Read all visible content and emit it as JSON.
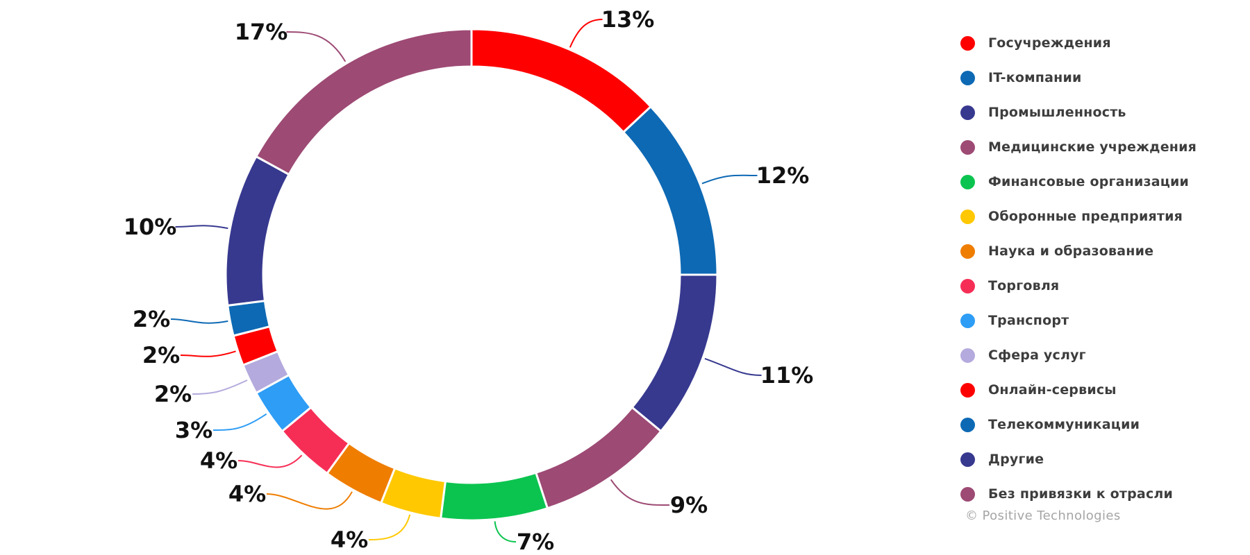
{
  "chart_data": {
    "type": "pie",
    "subtype": "donut",
    "title": "",
    "legend_position": "right",
    "direction": "clockwise",
    "start_angle_deg": 0,
    "total": 100,
    "categories": [
      "Госучреждения",
      "IT-компании",
      "Промышленность",
      "Медицинские учреждения",
      "Финансовые организации",
      "Оборонные предприятия",
      "Наука и образование",
      "Торговля",
      "Транспорт",
      "Сфера услуг",
      "Онлайн-сервисы",
      "Телекоммуникации",
      "Другие",
      "Без привязки к отрасли"
    ],
    "values": [
      13,
      12,
      11,
      9,
      7,
      4,
      4,
      4,
      3,
      2,
      2,
      2,
      10,
      17
    ],
    "labels": [
      "13%",
      "12%",
      "11%",
      "9%",
      "7%",
      "4%",
      "4%",
      "4%",
      "3%",
      "2%",
      "2%",
      "2%",
      "10%",
      "17%"
    ],
    "colors": [
      "#ff0000",
      "#0d69b4",
      "#37398f",
      "#9d4a74",
      "#0bc44f",
      "#ffc800",
      "#ef7d00",
      "#f62e56",
      "#2e9df5",
      "#b4aadd",
      "#ff0000",
      "#0d69b4",
      "#37398f",
      "#9d4a74"
    ]
  },
  "footer": {
    "copyright": "© Positive Technologies"
  }
}
